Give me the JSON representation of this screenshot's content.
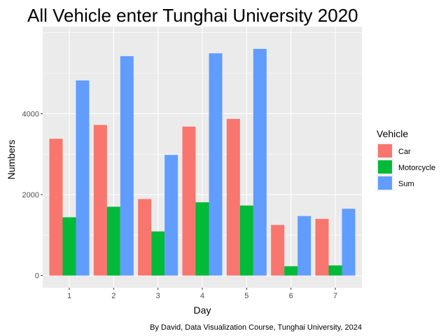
{
  "chart_data": {
    "type": "bar",
    "title": "All Vehicle enter Tunghai University 2020",
    "xlabel": "Day",
    "ylabel": "Numbers",
    "caption": "By David, Data Visualization Course, Tunghai University, 2024",
    "categories": [
      "1",
      "2",
      "3",
      "4",
      "5",
      "6",
      "7"
    ],
    "yticks": [
      0,
      2000,
      4000
    ],
    "ytick_labels": [
      "0",
      "2000",
      "4000"
    ],
    "ylim": [
      -300,
      6150
    ],
    "grid": true,
    "background": "#ebebeb",
    "legend": {
      "title": "Vehicle",
      "position": "right"
    },
    "series": [
      {
        "name": "Car",
        "color": "#f8766d",
        "values": [
          3380,
          3720,
          1890,
          3680,
          3870,
          1250,
          1400
        ]
      },
      {
        "name": "Motorcycle",
        "color": "#00ba38",
        "values": [
          1440,
          1700,
          1090,
          1810,
          1730,
          230,
          250
        ]
      },
      {
        "name": "Sum",
        "color": "#619cff",
        "values": [
          4820,
          5420,
          2980,
          5490,
          5600,
          1470,
          1650
        ]
      }
    ]
  }
}
